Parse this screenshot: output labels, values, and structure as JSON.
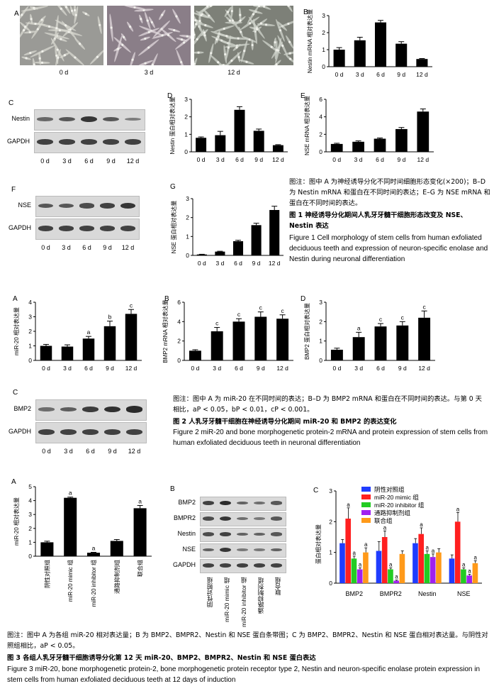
{
  "figure1": {
    "panel_A": {
      "label": "A",
      "time_labels": [
        "0 d",
        "3 d",
        "12 d"
      ]
    },
    "panel_C": {
      "label": "C",
      "bands": [
        "Nestin",
        "GAPDH"
      ],
      "time_labels": [
        "0 d",
        "3 d",
        "6 d",
        "9 d",
        "12 d"
      ]
    },
    "panel_F": {
      "label": "F",
      "bands": [
        "NSE",
        "GAPDH"
      ],
      "time_labels": [
        "0 d",
        "3 d",
        "6 d",
        "9 d",
        "12 d"
      ]
    },
    "caption_note": "图注：图中 A 为神经诱导分化不同时间细胞形态变化(×200)；B–D 为 Nestin mRNA 和蛋白在不同时间的表达；E–G 为 NSE mRNA 和蛋白在不同时间的表达。",
    "caption_title_cn": "图 1   神经诱导分化期间人乳牙牙髓干细胞形态改变及 NSE、Nestin 表达",
    "caption_title_en": "Figure 1   Cell morphology of stem cells from human exfoliated deciduous teeth and expression of neuron-specific enolase and Nestin during neuronal differentiation"
  },
  "figure2": {
    "panel_C": {
      "label": "C",
      "bands": [
        "BMP2",
        "GAPDH"
      ],
      "time_labels": [
        "0 d",
        "3 d",
        "6 d",
        "9 d",
        "12 d"
      ]
    },
    "caption_note": "图注：图中 A 为 miR-20 在不同时间的表达；B–D 为 BMP2 mRNA 和蛋白在不同时间的表达。与第 0 天相比，aP < 0.05，bP < 0.01，cP < 0.001。",
    "caption_title_cn": "图 2   人乳牙牙髓干细胞在神经诱导分化期间 miR-20 和 BMP2 的表达变化",
    "caption_title_en": "Figure 2   miR-20 and bone morphogenetic protein-2 mRNA and protein expression of stem cells from human exfoliated deciduous teeth in neuronal differentiation"
  },
  "figure3": {
    "panel_B": {
      "label": "B",
      "bands": [
        "BMP2",
        "BMPR2",
        "Nestin",
        "NSE",
        "GAPDH"
      ],
      "groups": [
        "阴性对照组",
        "miR-20 mimic 组",
        "miR-20 inhibitor 组",
        "通路抑制剂组",
        "联合组"
      ]
    },
    "caption_note": "图注：图中 A 为各组 miR-20 相对表达量；B 为 BMP2、BMPR2、Nestin 和 NSE 蛋白条带图；C 为 BMP2、BMPR2、Nestin 和 NSE 蛋白相对表达量。与阴性对照组相比，aP < 0.05。",
    "caption_title_cn": "图 3   各组人乳牙牙髓干细胞诱导分化第 12 天 miR-20、BMP2、BMPR2、Nestin 和 NSE 蛋白表达",
    "caption_title_en": "Figure 3   miR-20, bone morphogenetic protein-2, bone morphogenetic protein receptor type 2, Nestin and neuron-specific enolase protein expression in stem cells from human exfoliated deciduous teeth at 12 days of induction"
  },
  "chart_data": [
    {
      "id": "f1B",
      "type": "bar",
      "label": "B",
      "ylabel": "Nestin mRNA 相对表达量",
      "categories": [
        "0 d",
        "3 d",
        "6 d",
        "9 d",
        "12 d"
      ],
      "values": [
        1.0,
        1.55,
        2.6,
        1.35,
        0.45
      ],
      "errors": [
        0.12,
        0.18,
        0.12,
        0.12,
        0.03
      ],
      "ylim": [
        0,
        3
      ],
      "yticks": [
        0,
        1,
        2,
        3
      ],
      "sig": []
    },
    {
      "id": "f1D",
      "type": "bar",
      "label": "D",
      "ylabel": "Nestin 蛋白相对表达量",
      "categories": [
        "0 d",
        "3 d",
        "6 d",
        "9 d",
        "12 d"
      ],
      "values": [
        0.8,
        0.95,
        2.4,
        1.2,
        0.38
      ],
      "errors": [
        0.05,
        0.22,
        0.18,
        0.1,
        0.03
      ],
      "ylim": [
        0,
        3
      ],
      "yticks": [
        0,
        1,
        2,
        3
      ],
      "sig": []
    },
    {
      "id": "f1E",
      "type": "bar",
      "label": "E",
      "ylabel": "NSE mRNA 相对表达量",
      "categories": [
        "0 d",
        "3 d",
        "6 d",
        "9 d",
        "12 d"
      ],
      "values": [
        0.9,
        1.15,
        1.5,
        2.6,
        4.6
      ],
      "errors": [
        0.08,
        0.1,
        0.08,
        0.18,
        0.3
      ],
      "ylim": [
        0,
        6
      ],
      "yticks": [
        0,
        2,
        4,
        6
      ],
      "sig": []
    },
    {
      "id": "f1G",
      "type": "bar",
      "label": "G",
      "ylabel": "NSE 蛋白相对表达量",
      "categories": [
        "0 d",
        "3 d",
        "6 d",
        "9 d",
        "12 d"
      ],
      "values": [
        0.05,
        0.2,
        0.75,
        1.6,
        2.4
      ],
      "errors": [
        0.01,
        0.02,
        0.05,
        0.1,
        0.2
      ],
      "ylim": [
        0,
        3
      ],
      "yticks": [
        0,
        1,
        2,
        3
      ],
      "sig": []
    },
    {
      "id": "f2A",
      "type": "bar",
      "label": "A",
      "ylabel": "miR-20 相对表达量",
      "categories": [
        "0 d",
        "3 d",
        "6 d",
        "9 d",
        "12 d"
      ],
      "values": [
        1.0,
        0.95,
        1.5,
        2.35,
        3.2
      ],
      "errors": [
        0.1,
        0.12,
        0.15,
        0.35,
        0.3
      ],
      "ylim": [
        0,
        4
      ],
      "yticks": [
        0,
        1,
        2,
        3,
        4
      ],
      "sig": [
        "",
        "",
        "a",
        "b",
        "c"
      ]
    },
    {
      "id": "f2B",
      "type": "bar",
      "label": "B",
      "ylabel": "BMP2 mRNA 相对表达量",
      "categories": [
        "0 d",
        "3 d",
        "6 d",
        "9 d",
        "12 d"
      ],
      "values": [
        1.0,
        3.0,
        4.0,
        4.5,
        4.3
      ],
      "errors": [
        0.1,
        0.4,
        0.3,
        0.5,
        0.4
      ],
      "ylim": [
        0,
        6
      ],
      "yticks": [
        0,
        2,
        4,
        6
      ],
      "sig": [
        "",
        "c",
        "c",
        "c",
        "c"
      ]
    },
    {
      "id": "f2D",
      "type": "bar",
      "label": "D",
      "ylabel": "BMP2 蛋白相对表达量",
      "categories": [
        "0 d",
        "3 d",
        "6 d",
        "9 d",
        "12 d"
      ],
      "values": [
        0.55,
        1.2,
        1.75,
        1.8,
        2.2
      ],
      "errors": [
        0.08,
        0.25,
        0.15,
        0.2,
        0.35
      ],
      "ylim": [
        0,
        3
      ],
      "yticks": [
        0,
        1,
        2,
        3
      ],
      "sig": [
        "",
        "a",
        "c",
        "c",
        "c"
      ]
    },
    {
      "id": "f3A",
      "type": "bar",
      "label": "A",
      "ylabel": "miR-20 相对表达量",
      "categories": [
        "阴性对照组",
        "miR-20 mimic 组",
        "miR-20 inhibitor 组",
        "通路抑制剂组",
        "联合组"
      ],
      "values": [
        1.0,
        4.2,
        0.25,
        1.1,
        3.45
      ],
      "errors": [
        0.08,
        0.05,
        0.03,
        0.1,
        0.2
      ],
      "ylim": [
        0,
        5
      ],
      "yticks": [
        0,
        1,
        2,
        3,
        4,
        5
      ],
      "sig": [
        "",
        "a",
        "a",
        "",
        "a"
      ]
    },
    {
      "id": "f3C",
      "type": "bar",
      "label": "C",
      "ylabel": "蛋白相对表达量",
      "categories": [
        "BMP2",
        "BMPR2",
        "Nestin",
        "NSE"
      ],
      "ylim": [
        0,
        3
      ],
      "yticks": [
        0,
        1,
        2,
        3
      ],
      "series": [
        {
          "name": "阴性对照组",
          "color": "#1f3cff",
          "values": [
            1.3,
            1.05,
            1.3,
            0.8
          ],
          "errors": [
            0.12,
            0.3,
            0.15,
            0.12
          ],
          "sig": [
            "",
            "",
            "",
            ""
          ]
        },
        {
          "name": "miR-20 mimic 组",
          "color": "#ff2020",
          "values": [
            2.1,
            1.5,
            1.6,
            2.0
          ],
          "errors": [
            0.35,
            0.2,
            0.2,
            0.3
          ],
          "sig": [
            "a",
            "a",
            "a",
            "a"
          ]
        },
        {
          "name": "miR-20 inhibitor 组",
          "color": "#22cc22",
          "values": [
            0.8,
            0.45,
            0.95,
            0.45
          ],
          "errors": [
            0.08,
            0.05,
            0.1,
            0.05
          ],
          "sig": [
            "a",
            "a",
            "a",
            "a"
          ]
        },
        {
          "name": "通路抑制剂组",
          "color": "#a020f0",
          "values": [
            0.45,
            0.08,
            0.85,
            0.25
          ],
          "errors": [
            0.05,
            0.02,
            0.1,
            0.04
          ],
          "sig": [
            "a",
            "a",
            "a",
            "a"
          ]
        },
        {
          "name": "联合组",
          "color": "#ff9a1a",
          "values": [
            1.0,
            0.95,
            1.0,
            0.65
          ],
          "errors": [
            0.15,
            0.1,
            0.12,
            0.08
          ],
          "sig": [
            "a",
            "",
            "",
            "a"
          ]
        }
      ]
    }
  ]
}
